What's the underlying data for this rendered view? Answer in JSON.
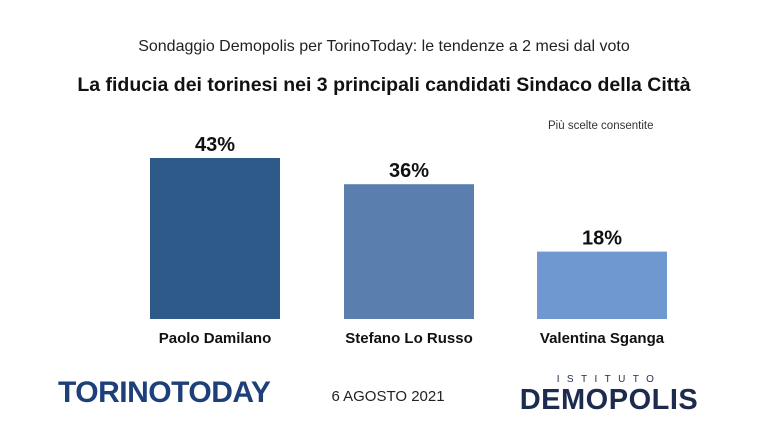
{
  "header": {
    "subtitle": "Sondaggio Demopolis per TorinoToday: le tendenze a 2 mesi dal voto",
    "title": "La fiducia dei torinesi nei 3 principali candidati Sindaco della Città",
    "note": "Più scelte consentite"
  },
  "chart_data": {
    "type": "bar",
    "categories": [
      "Paolo Damilano",
      "Stefano Lo Russo",
      "Valentina Sganga"
    ],
    "values": [
      43,
      36,
      18
    ],
    "value_labels": [
      "43%",
      "36%",
      "18%"
    ],
    "colors": [
      "#2e5a8a",
      "#5a7fae",
      "#6f98d0"
    ],
    "unit": "%",
    "ylim": [
      0,
      50
    ],
    "grid": false,
    "legend": "none"
  },
  "footer": {
    "left_logo": "TORINOTODAY",
    "date": "6 AGOSTO 2021",
    "right_logo_sub": "ISTITUTO",
    "right_logo": "DEMOPOLIS"
  }
}
